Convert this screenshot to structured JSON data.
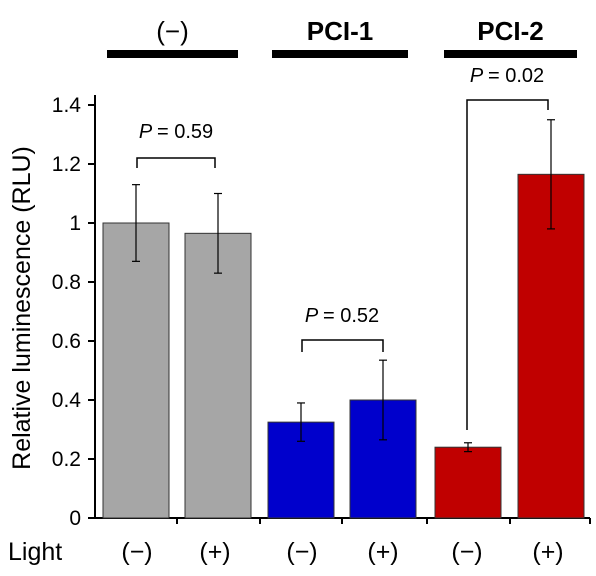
{
  "chart_data": {
    "type": "bar",
    "ylabel": "Relative luminescence (RLU)",
    "ylim": [
      0,
      1.4
    ],
    "yticks": [
      "0",
      "0.2",
      "0.4",
      "0.6",
      "0.8",
      "1",
      "1.2",
      "1.4"
    ],
    "x_row_label": "Light",
    "categories": [
      "(−)",
      "(+)",
      "(−)",
      "(+)",
      "(−)",
      "(+)"
    ],
    "groups": [
      {
        "label": "(−)",
        "color": "#a6a6a6",
        "values": [
          1.0,
          0.965
        ],
        "errors": [
          0.13,
          0.135
        ],
        "p_label": "P",
        "p_value": "= 0.59"
      },
      {
        "label": "PCI-1",
        "color": "#0000cc",
        "values": [
          0.325,
          0.4
        ],
        "errors": [
          0.065,
          0.135
        ],
        "p_label": "P",
        "p_value": "= 0.52"
      },
      {
        "label": "PCI-2",
        "color": "#c00000",
        "values": [
          0.24,
          1.165
        ],
        "errors": [
          0.015,
          0.185
        ],
        "p_label": "P",
        "p_value": "= 0.02"
      }
    ]
  }
}
